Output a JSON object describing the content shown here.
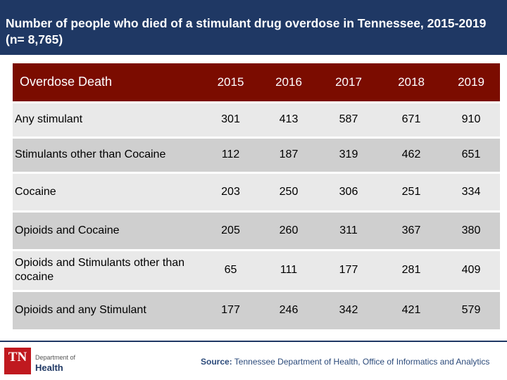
{
  "title": "Number of people who died of a stimulant drug overdose in Tennessee, 2015-2019 (n= 8,765)",
  "table": {
    "header_label": "Overdose Death",
    "years": [
      "2015",
      "2016",
      "2017",
      "2018",
      "2019"
    ],
    "rows": [
      {
        "label": "Any stimulant",
        "values": [
          "301",
          "413",
          "587",
          "671",
          "910"
        ]
      },
      {
        "label": "Stimulants other than Cocaine",
        "values": [
          "112",
          "187",
          "319",
          "462",
          "651"
        ]
      },
      {
        "label": "Cocaine",
        "values": [
          "203",
          "250",
          "306",
          "251",
          "334"
        ]
      },
      {
        "label": "Opioids and Cocaine",
        "values": [
          "205",
          "260",
          "311",
          "367",
          "380"
        ]
      },
      {
        "label": "Opioids and Stimulants other than cocaine",
        "values": [
          "65",
          "111",
          "177",
          "281",
          "409"
        ]
      },
      {
        "label": "Opioids and any Stimulant",
        "values": [
          "177",
          "246",
          "342",
          "421",
          "579"
        ]
      }
    ]
  },
  "footer": {
    "source_label": "Source:",
    "source_text": " Tennessee Department of Health, Office of Informatics and Analytics",
    "logo_mark": "TN",
    "logo_small": "Department of",
    "logo_big": "Health"
  },
  "colors": {
    "title_bg": "#1f3864",
    "header_bg": "#7b0c00",
    "row_light": "#e9e9e9",
    "row_dark": "#cfcfcf",
    "logo_red": "#c0191f"
  }
}
